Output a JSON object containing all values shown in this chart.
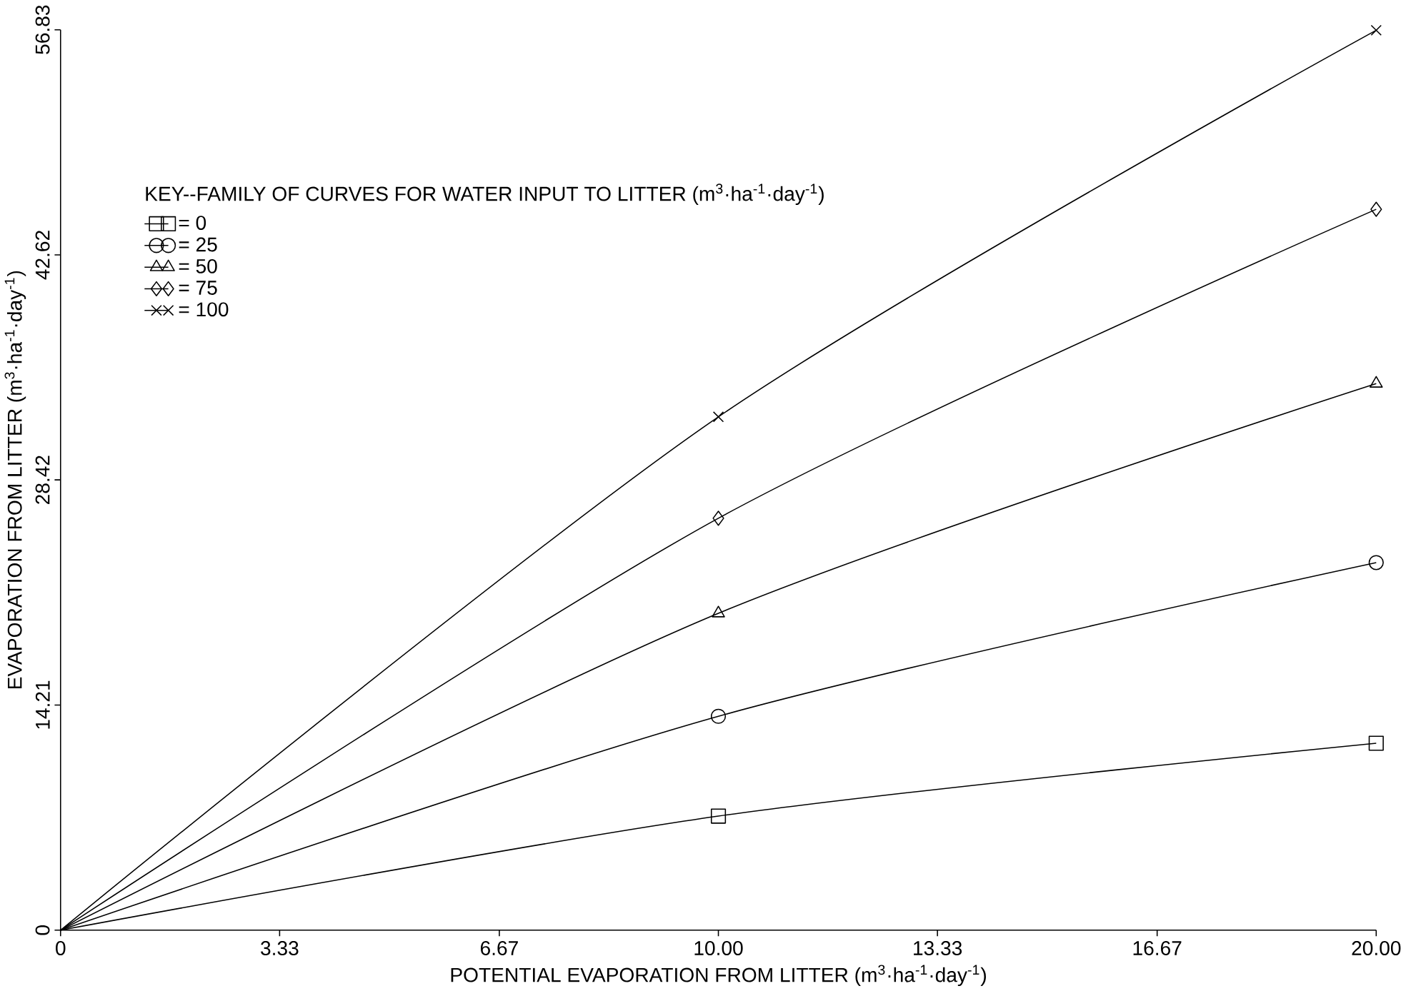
{
  "chart_data": {
    "type": "line",
    "xlabel": "POTENTIAL EVAPORATION FROM LITTER (m$^{3}$·ha$^{-1}$·day$^{-1}$)",
    "ylabel": "EVAPORATION FROM LITTER (m$^{3}$·ha$^{-1}$·day$^{-1}$)",
    "legend_title": "KEY--FAMILY OF CURVES FOR WATER INPUT TO LITTER (m$^{3}$·ha$^{-1}$·day$^{-1}$)",
    "x": [
      0,
      10,
      20
    ],
    "series": [
      {
        "name": "=    0",
        "color": "#000000",
        "marker": "square",
        "values": [
          0,
          7.2,
          11.8
        ]
      },
      {
        "name": "=   25",
        "color": "#000000",
        "marker": "circle",
        "values": [
          0,
          13.5,
          23.2
        ]
      },
      {
        "name": "=   50",
        "color": "#000000",
        "marker": "triangle",
        "values": [
          0,
          20,
          34.5
        ]
      },
      {
        "name": "=   75",
        "color": "#000000",
        "marker": "diamond",
        "values": [
          0,
          26,
          45.5
        ]
      },
      {
        "name": "= 100",
        "color": "#000000",
        "marker": "cross",
        "values": [
          0,
          32.4,
          56.8
        ]
      }
    ],
    "xlim": [
      0,
      20
    ],
    "ylim": [
      0,
      56.83
    ],
    "xticks": [
      0,
      3.33,
      6.67,
      {
        "value": 10,
        "label": "10.00"
      },
      13.33,
      16.67,
      {
        "value": 20,
        "label": "20.00"
      }
    ],
    "yticks": [
      0,
      14.21,
      28.42,
      42.62,
      56.83
    ],
    "legend": "top left",
    "grid": false,
    "line_style": "solid"
  }
}
